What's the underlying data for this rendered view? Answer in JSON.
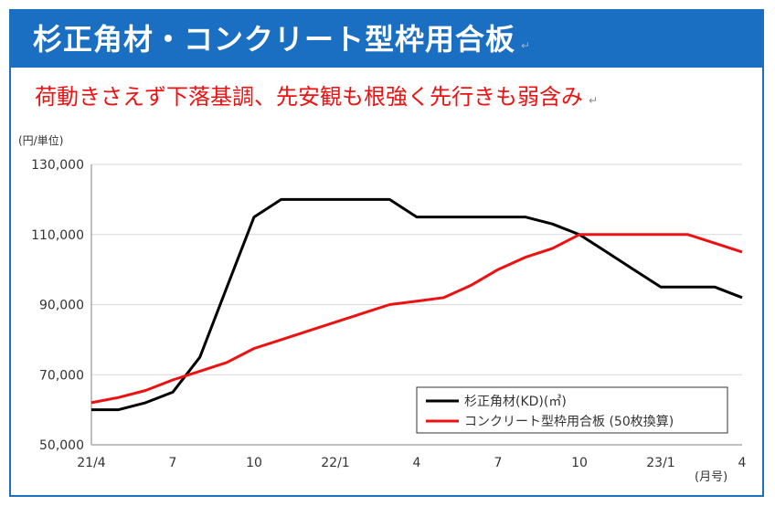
{
  "header": {
    "title": "杉正角材・コンクリート型枠用合板",
    "subtitle": "荷動きさえず下落基調、先安観も根強く先行きも弱含み"
  },
  "colors": {
    "title_bg": "#1a6fc2",
    "subtitle": "#ee1111",
    "series_1": "#000000",
    "series_2": "#ee1111"
  },
  "chart_data": {
    "type": "line",
    "title": "",
    "ylabel": "(円/単位)",
    "xlabel": "(月号)",
    "ylim": [
      50000,
      130000
    ],
    "yticks": [
      "130,000",
      "110,000",
      "90,000",
      "70,000",
      "50,000"
    ],
    "yticks_values": [
      130000,
      110000,
      90000,
      70000,
      50000
    ],
    "xticks": [
      "21/4",
      "7",
      "10",
      "22/1",
      "4",
      "7",
      "10",
      "23/1",
      "4"
    ],
    "x": [
      "21/4",
      "21/5",
      "21/6",
      "21/7",
      "21/8",
      "21/9",
      "21/10",
      "21/11",
      "21/12",
      "22/1",
      "22/2",
      "22/3",
      "22/4",
      "22/5",
      "22/6",
      "22/7",
      "22/8",
      "22/9",
      "22/10",
      "22/11",
      "22/12",
      "23/1",
      "23/2",
      "23/3",
      "23/4"
    ],
    "series": [
      {
        "name": "杉正角材(KD)(㎥)",
        "color": "#000000",
        "values": [
          60000,
          60000,
          62000,
          65000,
          75000,
          95000,
          115000,
          120000,
          120000,
          120000,
          120000,
          120000,
          115000,
          115000,
          115000,
          115000,
          115000,
          113000,
          110000,
          105000,
          100000,
          95000,
          95000,
          95000,
          92000
        ]
      },
      {
        "name": "コンクリート型枠用合板 (50枚換算)",
        "color": "#ee1111",
        "values": [
          62000,
          63500,
          65500,
          68500,
          71000,
          73500,
          77500,
          80000,
          82500,
          85000,
          87500,
          90000,
          91000,
          92000,
          95500,
          100000,
          103500,
          106000,
          110000,
          110000,
          110000,
          110000,
          110000,
          107500,
          105000
        ]
      }
    ],
    "legend": "bottom-right",
    "grid": true
  }
}
